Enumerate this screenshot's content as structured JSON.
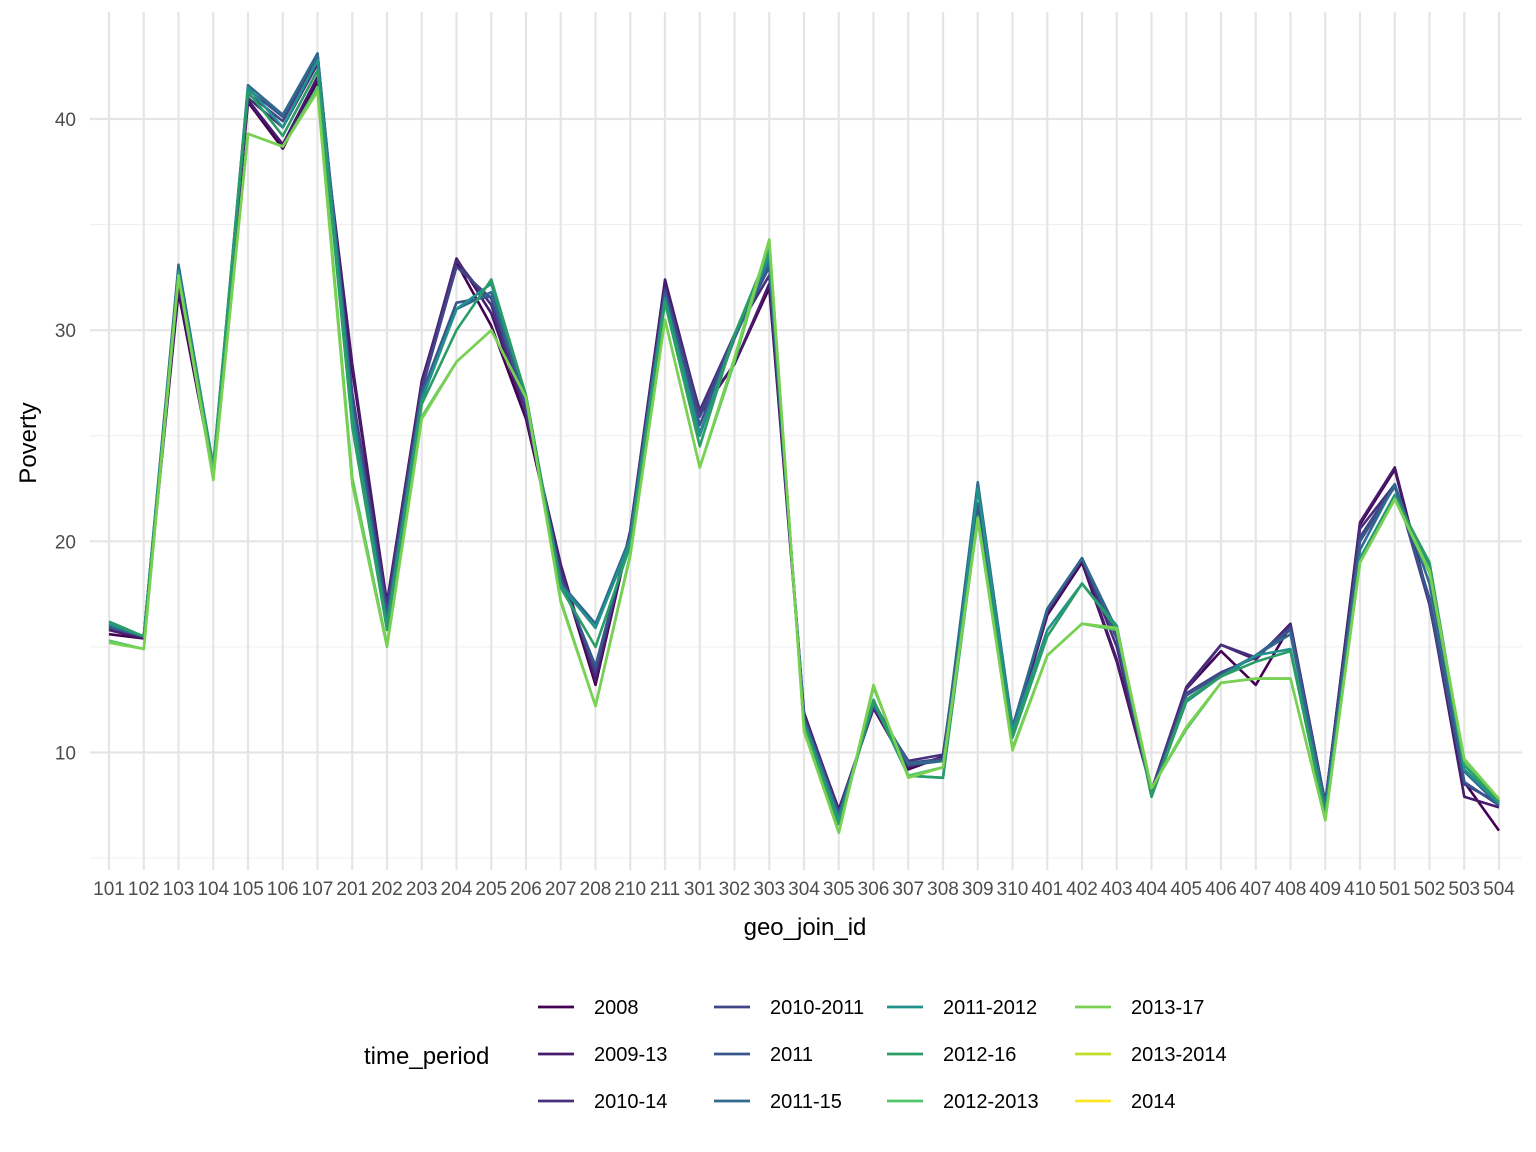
{
  "chart_data": {
    "type": "line",
    "xlabel": "geo_join_id",
    "ylabel": "Poverty",
    "ylim": [
      4.5,
      44.8
    ],
    "yticks": [
      10,
      20,
      30,
      40
    ],
    "grid": true,
    "legend_title": "time_period",
    "legend_position": "bottom",
    "categories": [
      "101",
      "102",
      "103",
      "104",
      "105",
      "106",
      "107",
      "201",
      "202",
      "203",
      "204",
      "205",
      "206",
      "207",
      "208",
      "210",
      "211",
      "301",
      "302",
      "303",
      "304",
      "305",
      "306",
      "307",
      "308",
      "309",
      "310",
      "401",
      "402",
      "403",
      "404",
      "405",
      "406",
      "407",
      "408",
      "409",
      "410",
      "501",
      "502",
      "503",
      "504"
    ],
    "series": [
      {
        "name": "2008",
        "color": "#440154",
        "values": [
          15.6,
          15.4,
          31.8,
          23.2,
          40.8,
          38.6,
          41.8,
          28.1,
          17.1,
          27.6,
          33.2,
          30.2,
          25.8,
          18.6,
          13.2,
          20.4,
          32.3,
          26.0,
          28.4,
          32.0,
          11.8,
          7.3,
          12.1,
          9.2,
          9.8,
          21.3,
          10.9,
          16.5,
          19.0,
          14.3,
          8.2,
          13.0,
          14.8,
          13.2,
          16.0,
          7.6,
          20.8,
          23.4,
          17.0,
          8.6,
          6.3
        ]
      },
      {
        "name": "2009-13",
        "color": "#481a6c",
        "values": [
          15.8,
          15.4,
          32.0,
          23.4,
          40.9,
          38.8,
          42.0,
          28.4,
          17.0,
          27.5,
          33.4,
          30.8,
          26.0,
          18.9,
          13.4,
          20.5,
          32.4,
          26.1,
          28.4,
          32.2,
          11.9,
          7.2,
          12.1,
          9.3,
          9.8,
          21.4,
          10.9,
          16.6,
          19.1,
          14.4,
          8.2,
          13.1,
          15.1,
          14.4,
          16.1,
          7.6,
          20.9,
          23.5,
          17.1,
          7.9,
          7.4
        ]
      },
      {
        "name": "2010-14",
        "color": "#472f7d",
        "values": [
          15.9,
          15.5,
          32.3,
          23.5,
          41.0,
          39.6,
          42.6,
          27.0,
          16.9,
          27.4,
          33.3,
          31.2,
          26.1,
          18.6,
          13.7,
          20.5,
          32.0,
          26.2,
          29.8,
          32.6,
          11.7,
          7.2,
          12.2,
          9.6,
          9.9,
          21.6,
          11.0,
          16.7,
          19.2,
          15.0,
          8.2,
          13.0,
          15.1,
          14.5,
          16.0,
          7.6,
          20.6,
          22.7,
          17.0,
          8.5,
          7.6
        ]
      },
      {
        "name": "2010-2011",
        "color": "#414487",
        "values": [
          15.9,
          15.5,
          32.6,
          23.4,
          41.2,
          39.9,
          43.0,
          26.9,
          16.6,
          27.2,
          33.0,
          31.5,
          26.4,
          18.3,
          13.9,
          20.4,
          31.9,
          25.9,
          29.8,
          33.0,
          11.7,
          7.1,
          12.2,
          9.5,
          9.7,
          21.7,
          11.1,
          16.8,
          19.2,
          15.4,
          8.1,
          12.8,
          13.8,
          14.5,
          15.9,
          7.5,
          20.2,
          22.7,
          17.1,
          8.6,
          7.5
        ]
      },
      {
        "name": "2011",
        "color": "#39568c",
        "values": [
          16.0,
          15.5,
          32.9,
          23.5,
          41.4,
          40.1,
          43.1,
          26.5,
          16.4,
          27.0,
          31.3,
          31.6,
          26.6,
          18.2,
          14.1,
          20.3,
          31.7,
          25.5,
          29.7,
          33.0,
          11.6,
          7.0,
          12.3,
          9.4,
          9.6,
          21.8,
          11.2,
          16.8,
          19.2,
          15.5,
          8.1,
          12.7,
          13.7,
          14.6,
          15.8,
          7.5,
          20.0,
          22.6,
          17.3,
          8.6,
          7.5
        ]
      },
      {
        "name": "2011-15",
        "color": "#31688e",
        "values": [
          16.0,
          15.5,
          33.1,
          23.5,
          41.6,
          40.2,
          43.1,
          26.3,
          16.2,
          26.9,
          31.0,
          31.8,
          26.8,
          18.0,
          16.1,
          20.2,
          31.6,
          25.1,
          29.6,
          33.3,
          11.5,
          7.0,
          12.4,
          9.5,
          9.6,
          22.8,
          11.2,
          16.8,
          19.2,
          15.8,
          8.0,
          12.5,
          13.6,
          14.6,
          15.6,
          7.5,
          19.6,
          22.7,
          18.0,
          9.1,
          7.5
        ]
      },
      {
        "name": "2011-2012",
        "color": "#21918c",
        "values": [
          16.1,
          15.5,
          32.8,
          23.6,
          41.5,
          39.6,
          42.8,
          26.0,
          16.0,
          26.7,
          31.0,
          32.2,
          26.9,
          17.9,
          15.9,
          20.0,
          31.5,
          25.0,
          29.8,
          33.5,
          11.4,
          6.8,
          12.4,
          8.9,
          8.8,
          22.5,
          11.0,
          15.8,
          18.0,
          16.0,
          7.9,
          12.4,
          13.6,
          14.6,
          14.9,
          7.2,
          19.2,
          22.2,
          18.8,
          9.2,
          7.6
        ]
      },
      {
        "name": "2012-16",
        "color": "#2a9d66",
        "values": [
          16.2,
          15.5,
          32.6,
          23.5,
          41.3,
          39.2,
          42.3,
          25.4,
          15.8,
          26.5,
          30.0,
          32.4,
          26.9,
          17.8,
          15.0,
          19.8,
          31.3,
          24.5,
          29.8,
          33.8,
          11.3,
          6.6,
          12.5,
          8.9,
          8.8,
          21.2,
          10.7,
          15.5,
          18.0,
          15.9,
          7.9,
          12.5,
          13.6,
          14.3,
          14.8,
          7.0,
          19.1,
          22.1,
          19.0,
          9.4,
          7.7
        ]
      },
      {
        "name": "2012-2013",
        "color": "#51c56a",
        "values": [
          15.3,
          14.9,
          32.5,
          23.2,
          39.3,
          38.7,
          41.5,
          23.0,
          15.1,
          25.9,
          28.5,
          30.0,
          26.8,
          17.2,
          12.2,
          19.4,
          30.5,
          23.5,
          28.5,
          34.2,
          11.1,
          6.2,
          13.1,
          8.9,
          9.3,
          21.0,
          10.2,
          14.6,
          16.1,
          15.8,
          8.3,
          11.1,
          13.3,
          13.5,
          13.5,
          6.8,
          19.0,
          22.0,
          18.5,
          9.6,
          7.8
        ]
      },
      {
        "name": "2013-17",
        "color": "#7ad151",
        "values": [
          15.2,
          14.9,
          32.6,
          22.9,
          39.3,
          38.7,
          41.3,
          22.7,
          15.0,
          25.8,
          28.5,
          30.0,
          26.8,
          17.1,
          12.2,
          19.3,
          30.5,
          23.5,
          28.7,
          34.3,
          11.0,
          6.2,
          13.2,
          8.8,
          9.3,
          21.1,
          10.1,
          14.6,
          16.1,
          15.9,
          8.3,
          11.2,
          13.3,
          13.5,
          13.5,
          6.8,
          19.0,
          22.0,
          18.6,
          9.7,
          7.8
        ]
      },
      {
        "name": "2013-2014",
        "color": "#bddf26",
        "values": null
      },
      {
        "name": "2014",
        "color": "#fde725",
        "values": null
      }
    ]
  }
}
